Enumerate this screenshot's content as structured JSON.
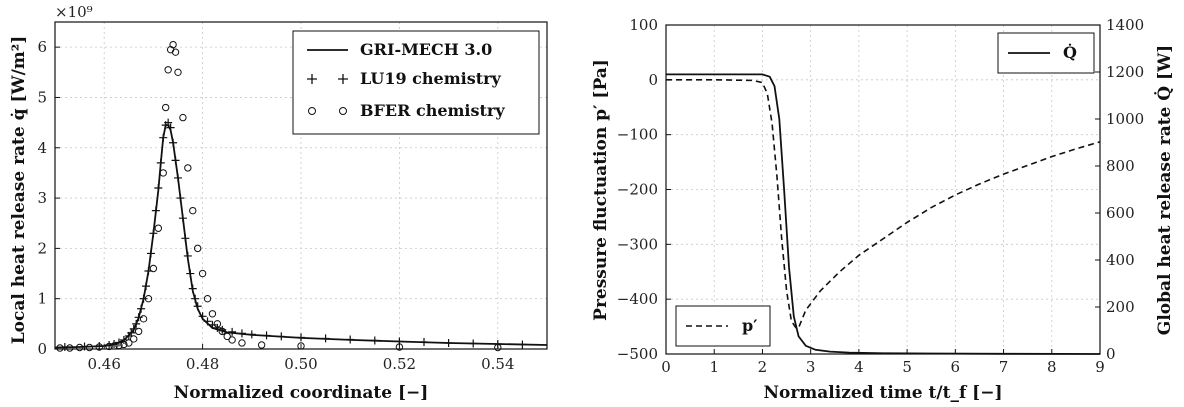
{
  "chart_data": [
    {
      "type": "scatter",
      "multiplier": "×10⁹",
      "xlabel": "Normalized coordinate [−]",
      "ylabel": "Local heat release rate q̇ [W/m²]",
      "xlim": [
        0.45,
        0.55
      ],
      "ylim": [
        0,
        6.5
      ],
      "xticks": [
        "0.46",
        "0.48",
        "0.50",
        "0.52",
        "0.54"
      ],
      "yticks": [
        "0",
        "1",
        "2",
        "3",
        "4",
        "5",
        "6"
      ],
      "grid": true,
      "legend_position": "top-right",
      "series": [
        {
          "name": "GRI-MECH 3.0",
          "style": "line",
          "x": [
            0.45,
            0.455,
            0.46,
            0.462,
            0.464,
            0.466,
            0.467,
            0.468,
            0.469,
            0.47,
            0.471,
            0.4715,
            0.472,
            0.4725,
            0.473,
            0.4735,
            0.474,
            0.475,
            0.476,
            0.477,
            0.478,
            0.479,
            0.48,
            0.482,
            0.485,
            0.49,
            0.5,
            0.51,
            0.52,
            0.53,
            0.54,
            0.55
          ],
          "y": [
            0.03,
            0.04,
            0.06,
            0.09,
            0.17,
            0.38,
            0.62,
            1.0,
            1.55,
            2.3,
            3.15,
            3.7,
            4.2,
            4.45,
            4.45,
            4.35,
            4.1,
            3.4,
            2.6,
            1.8,
            1.15,
            0.8,
            0.6,
            0.42,
            0.33,
            0.28,
            0.22,
            0.18,
            0.15,
            0.12,
            0.1,
            0.08
          ]
        },
        {
          "name": "LU19 chemistry",
          "style": "plus",
          "x": [
            0.452,
            0.456,
            0.459,
            0.461,
            0.462,
            0.463,
            0.464,
            0.465,
            0.4655,
            0.466,
            0.4665,
            0.467,
            0.4675,
            0.468,
            0.4685,
            0.469,
            0.4695,
            0.47,
            0.4705,
            0.471,
            0.4715,
            0.472,
            0.4725,
            0.473,
            0.4735,
            0.474,
            0.4745,
            0.475,
            0.4755,
            0.476,
            0.4765,
            0.477,
            0.4775,
            0.478,
            0.4785,
            0.479,
            0.48,
            0.481,
            0.482,
            0.483,
            0.484,
            0.486,
            0.488,
            0.49,
            0.493,
            0.496,
            0.5,
            0.505,
            0.51,
            0.515,
            0.52,
            0.525,
            0.53,
            0.535,
            0.54,
            0.545
          ],
          "y": [
            0.04,
            0.05,
            0.06,
            0.08,
            0.1,
            0.13,
            0.18,
            0.26,
            0.32,
            0.4,
            0.5,
            0.63,
            0.8,
            1.0,
            1.25,
            1.55,
            1.9,
            2.3,
            2.75,
            3.2,
            3.7,
            4.2,
            4.45,
            4.5,
            4.4,
            4.1,
            3.75,
            3.4,
            3.0,
            2.6,
            2.2,
            1.85,
            1.5,
            1.2,
            1.0,
            0.85,
            0.65,
            0.55,
            0.48,
            0.42,
            0.38,
            0.34,
            0.31,
            0.29,
            0.27,
            0.25,
            0.23,
            0.21,
            0.19,
            0.17,
            0.15,
            0.14,
            0.12,
            0.11,
            0.1,
            0.09
          ]
        },
        {
          "name": "BFER chemistry",
          "style": "circle",
          "x": [
            0.451,
            0.453,
            0.455,
            0.457,
            0.459,
            0.461,
            0.462,
            0.463,
            0.464,
            0.465,
            0.466,
            0.467,
            0.468,
            0.469,
            0.47,
            0.471,
            0.472,
            0.4725,
            0.473,
            0.4735,
            0.474,
            0.4745,
            0.475,
            0.476,
            0.477,
            0.478,
            0.479,
            0.48,
            0.481,
            0.482,
            0.483,
            0.484,
            0.485,
            0.486,
            0.488,
            0.492,
            0.5,
            0.52,
            0.54
          ],
          "y": [
            0.02,
            0.02,
            0.03,
            0.03,
            0.04,
            0.05,
            0.06,
            0.07,
            0.09,
            0.12,
            0.2,
            0.35,
            0.6,
            1.0,
            1.6,
            2.4,
            3.5,
            4.8,
            5.55,
            5.95,
            6.05,
            5.9,
            5.5,
            4.6,
            3.6,
            2.75,
            2.0,
            1.5,
            1.0,
            0.7,
            0.5,
            0.35,
            0.25,
            0.18,
            0.12,
            0.08,
            0.06,
            0.04,
            0.03
          ]
        }
      ]
    },
    {
      "type": "line",
      "xlabel": "Normalized time t/t_f [−]",
      "ylabel": "Pressure fluctuation p′ [Pa]",
      "y2label": "Global heat release rate Q̇ [W]",
      "xlim": [
        0,
        9
      ],
      "ylim": [
        -500,
        100
      ],
      "y2lim": [
        0,
        1400
      ],
      "xticks": [
        "0",
        "1",
        "2",
        "3",
        "4",
        "5",
        "6",
        "7",
        "8",
        "9"
      ],
      "yticks": [
        "100",
        "0",
        "−100",
        "−200",
        "−300",
        "−400",
        "−500"
      ],
      "y2ticks": [
        "1400",
        "1200",
        "1000",
        "800",
        "600",
        "400",
        "200",
        "0"
      ],
      "grid": true,
      "legend_positions": [
        "top-right",
        "bottom-left"
      ],
      "series": [
        {
          "name": "Q̇",
          "axis": "right",
          "style": "solid",
          "x": [
            0,
            1,
            2,
            2.15,
            2.25,
            2.35,
            2.45,
            2.55,
            2.65,
            2.75,
            2.9,
            3.1,
            3.4,
            3.8,
            4.5,
            5.5,
            7,
            9
          ],
          "y": [
            1190,
            1190,
            1190,
            1180,
            1140,
            1000,
            700,
            370,
            160,
            75,
            35,
            18,
            10,
            6,
            3,
            2,
            1,
            0
          ]
        },
        {
          "name": "p′",
          "axis": "left",
          "style": "dashed",
          "x": [
            0,
            1,
            1.8,
            2.0,
            2.1,
            2.2,
            2.3,
            2.4,
            2.5,
            2.6,
            2.7,
            2.75,
            2.9,
            3.2,
            3.6,
            4.0,
            4.5,
            5.0,
            5.5,
            6.0,
            6.5,
            7.0,
            7.5,
            8.0,
            8.5,
            9.0
          ],
          "y": [
            0,
            0,
            -1,
            -5,
            -25,
            -80,
            -175,
            -290,
            -385,
            -440,
            -453,
            -452,
            -420,
            -385,
            -350,
            -320,
            -290,
            -260,
            -233,
            -210,
            -190,
            -172,
            -156,
            -140,
            -126,
            -113
          ]
        }
      ]
    }
  ]
}
